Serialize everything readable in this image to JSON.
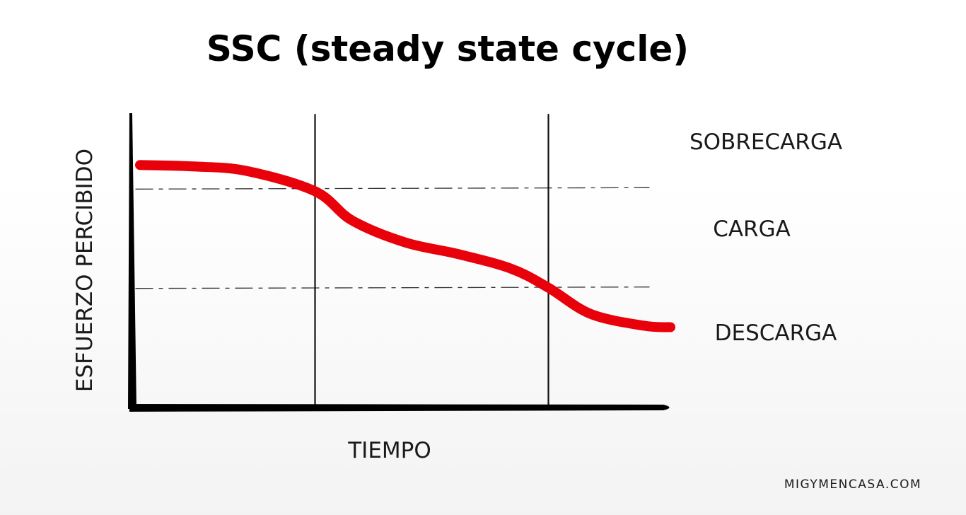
{
  "chart_data": {
    "type": "line",
    "title": "SSC (steady state cycle)",
    "xlabel": "TIEMPO",
    "ylabel": "ESFUERZO PERCIBIDO",
    "xlim": [
      0,
      100
    ],
    "ylim": [
      0,
      100
    ],
    "zones": [
      "SOBRECARGA",
      "CARGA",
      "DESCARGA"
    ],
    "zone_boundaries": [
      33,
      67
    ],
    "phase_dividers_x": [
      33,
      77
    ],
    "series": [
      {
        "color": "#e8000b",
        "x": [
          0,
          10,
          20,
          33,
          40,
          50,
          60,
          70,
          77,
          85,
          95,
          100
        ],
        "y": [
          75,
          74.5,
          73,
          66,
          56,
          48.5,
          44.5,
          39.5,
          33,
          24,
          20,
          19.5
        ]
      }
    ],
    "grid": false,
    "legend": "none",
    "credit": "MIGYMENCASA.COM"
  }
}
